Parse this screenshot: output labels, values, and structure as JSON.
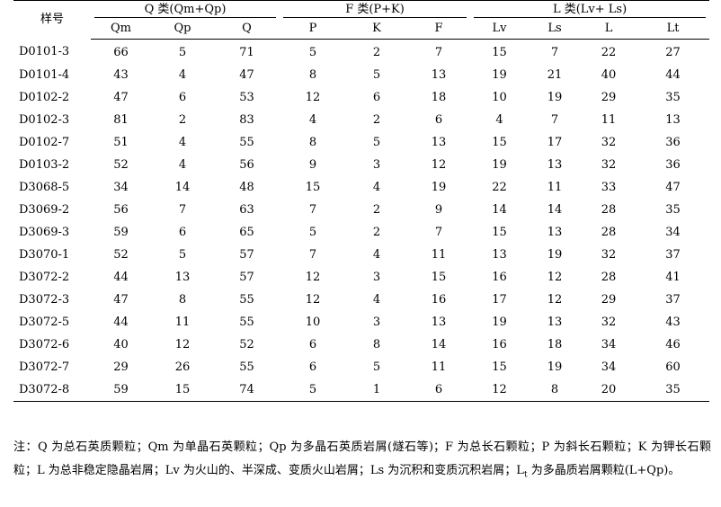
{
  "table": {
    "sample_header": "样号",
    "groups": [
      {
        "label": "Q 类(Qm+Qp)",
        "cols": [
          "Qm",
          "Qp",
          "Q"
        ]
      },
      {
        "label": "F 类(P+K)",
        "cols": [
          "P",
          "K",
          "F"
        ]
      },
      {
        "label": "L 类(Lv+ Ls)",
        "cols": [
          "Lv",
          "Ls",
          "L",
          "Lt"
        ]
      }
    ],
    "rows": [
      {
        "id": "D0101-3",
        "v": [
          "66",
          "5",
          "71",
          "5",
          "2",
          "7",
          "15",
          "7",
          "22",
          "27"
        ]
      },
      {
        "id": "D0101-4",
        "v": [
          "43",
          "4",
          "47",
          "8",
          "5",
          "13",
          "19",
          "21",
          "40",
          "44"
        ]
      },
      {
        "id": "D0102-2",
        "v": [
          "47",
          "6",
          "53",
          "12",
          "6",
          "18",
          "10",
          "19",
          "29",
          "35"
        ]
      },
      {
        "id": "D0102-3",
        "v": [
          "81",
          "2",
          "83",
          "4",
          "2",
          "6",
          "4",
          "7",
          "11",
          "13"
        ]
      },
      {
        "id": "D0102-7",
        "v": [
          "51",
          "4",
          "55",
          "8",
          "5",
          "13",
          "15",
          "17",
          "32",
          "36"
        ]
      },
      {
        "id": "D0103-2",
        "v": [
          "52",
          "4",
          "56",
          "9",
          "3",
          "12",
          "19",
          "13",
          "32",
          "36"
        ]
      },
      {
        "id": "D3068-5",
        "v": [
          "34",
          "14",
          "48",
          "15",
          "4",
          "19",
          "22",
          "11",
          "33",
          "47"
        ]
      },
      {
        "id": "D3069-2",
        "v": [
          "56",
          "7",
          "63",
          "7",
          "2",
          "9",
          "14",
          "14",
          "28",
          "35"
        ]
      },
      {
        "id": "D3069-3",
        "v": [
          "59",
          "6",
          "65",
          "5",
          "2",
          "7",
          "15",
          "13",
          "28",
          "34"
        ]
      },
      {
        "id": "D3070-1",
        "v": [
          "52",
          "5",
          "57",
          "7",
          "4",
          "11",
          "13",
          "19",
          "32",
          "37"
        ]
      },
      {
        "id": "D3072-2",
        "v": [
          "44",
          "13",
          "57",
          "12",
          "3",
          "15",
          "16",
          "12",
          "28",
          "41"
        ]
      },
      {
        "id": "D3072-3",
        "v": [
          "47",
          "8",
          "55",
          "12",
          "4",
          "16",
          "17",
          "12",
          "29",
          "37"
        ]
      },
      {
        "id": "D3072-5",
        "v": [
          "44",
          "11",
          "55",
          "10",
          "3",
          "13",
          "19",
          "13",
          "32",
          "43"
        ]
      },
      {
        "id": "D3072-6",
        "v": [
          "40",
          "12",
          "52",
          "6",
          "8",
          "14",
          "16",
          "18",
          "34",
          "46"
        ]
      },
      {
        "id": "D3072-7",
        "v": [
          "29",
          "26",
          "55",
          "6",
          "5",
          "11",
          "15",
          "19",
          "34",
          "60"
        ]
      },
      {
        "id": "D3072-8",
        "v": [
          "59",
          "15",
          "74",
          "5",
          "1",
          "6",
          "12",
          "8",
          "20",
          "35"
        ]
      }
    ]
  },
  "note": {
    "part1": "注：Q 为总石英质颗粒；Qm 为单晶石英颗粒；Qp 为多晶石英质岩屑(燧石等)；F 为总长石颗粒；P 为斜长石颗粒；K 为钾长石颗粒；L 为总非稳定隐晶岩屑；Lv 为火山的、半深成、变质火山岩屑；Ls 为沉积和变质沉积岩屑；L",
    "sub": "t",
    "part2": " 为多晶质岩屑颗粒(L+Qp)。"
  }
}
